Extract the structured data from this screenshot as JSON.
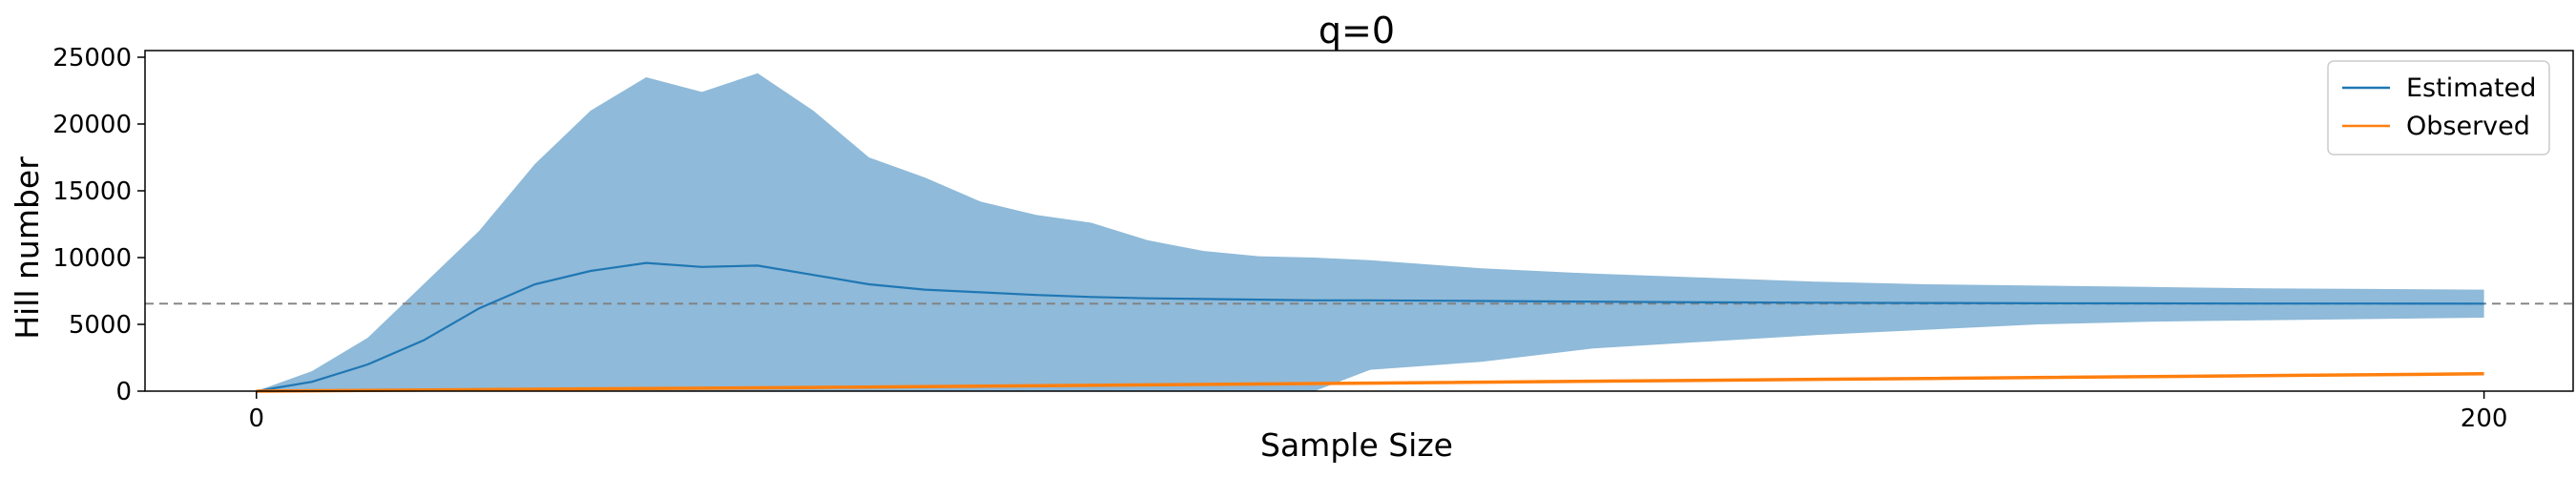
{
  "chart_data": {
    "type": "line",
    "title": "q=0",
    "xlabel": "Sample Size",
    "ylabel": "Hill number",
    "xlim": [
      -10,
      208
    ],
    "ylim": [
      0,
      25500
    ],
    "xticks": [
      0,
      200
    ],
    "yticks": [
      0,
      5000,
      10000,
      15000,
      20000,
      25000
    ],
    "grid": false,
    "legend_position": "top-right",
    "reference_line": {
      "y": 6550,
      "style": "dashed",
      "color": "#808080"
    },
    "colors": {
      "estimated": "#1f77b4",
      "band": "#8fbad9",
      "observed": "#ff7f0e"
    },
    "series": [
      {
        "name": "Estimated",
        "x": [
          0,
          5,
          10,
          15,
          20,
          25,
          30,
          35,
          40,
          45,
          50,
          55,
          60,
          65,
          70,
          75,
          80,
          85,
          90,
          95,
          100,
          110,
          120,
          130,
          140,
          150,
          160,
          170,
          180,
          190,
          200
        ],
        "values": [
          0,
          700,
          2000,
          3800,
          6200,
          8000,
          9000,
          9600,
          9300,
          9400,
          8700,
          8000,
          7600,
          7400,
          7200,
          7050,
          6950,
          6900,
          6850,
          6800,
          6800,
          6750,
          6700,
          6650,
          6620,
          6600,
          6580,
          6570,
          6560,
          6560,
          6550
        ],
        "lower": [
          0,
          0,
          0,
          0,
          0,
          0,
          0,
          0,
          0,
          0,
          0,
          0,
          0,
          0,
          0,
          0,
          0,
          0,
          0,
          0,
          1600,
          2200,
          3200,
          3700,
          4200,
          4600,
          5000,
          5200,
          5300,
          5400,
          5500
        ],
        "upper": [
          0,
          1500,
          4000,
          8000,
          12000,
          17000,
          21000,
          23500,
          22400,
          23800,
          21000,
          17500,
          16000,
          14200,
          13200,
          12600,
          11300,
          10500,
          10100,
          10000,
          9800,
          9200,
          8800,
          8500,
          8200,
          8000,
          7900,
          7800,
          7700,
          7650,
          7600
        ]
      },
      {
        "name": "Observed",
        "x": [
          0,
          50,
          100,
          150,
          200
        ],
        "values": [
          0,
          280,
          600,
          950,
          1300
        ]
      }
    ]
  }
}
